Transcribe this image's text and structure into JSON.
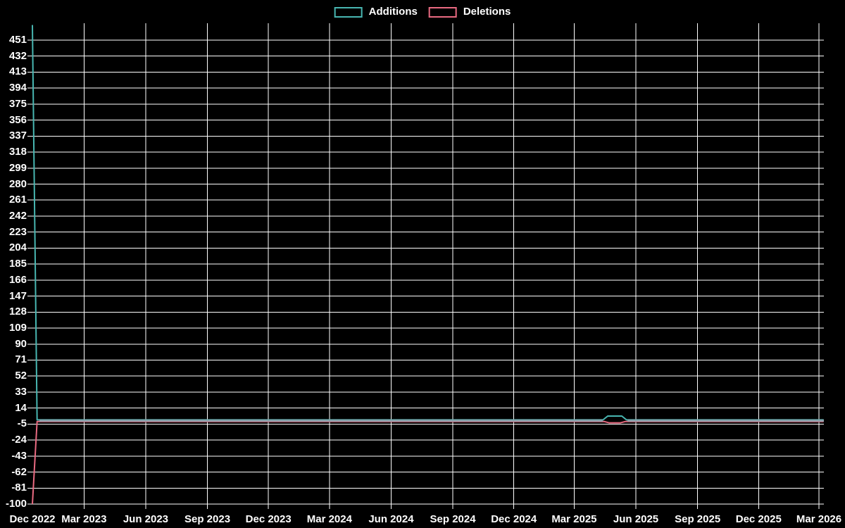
{
  "chart_data": {
    "type": "line",
    "title": "",
    "legend_position": "top-center",
    "background_color": "#000000",
    "grid": true,
    "grid_color": "#ffffff",
    "text_color": "#ffffff",
    "overlap_line_color": "#8ba4ae",
    "ylim": [
      -100,
      469
    ],
    "xlim": [
      "2022-12-14",
      "2026-03-08"
    ],
    "y_ticks": [
      451,
      432,
      413,
      394,
      375,
      356,
      337,
      318,
      299,
      280,
      261,
      242,
      223,
      204,
      185,
      166,
      147,
      128,
      109,
      90,
      71,
      52,
      33,
      14,
      -5,
      -24,
      -43,
      -62,
      -81,
      -100
    ],
    "x_ticks": [
      {
        "label": "Dec 2022",
        "date": "2022-12-14"
      },
      {
        "label": "Mar 2023",
        "date": "2023-03-01"
      },
      {
        "label": "Jun 2023",
        "date": "2023-06-01"
      },
      {
        "label": "Sep 2023",
        "date": "2023-09-01"
      },
      {
        "label": "Dec 2023",
        "date": "2023-12-01"
      },
      {
        "label": "Mar 2024",
        "date": "2024-03-01"
      },
      {
        "label": "Jun 2024",
        "date": "2024-06-01"
      },
      {
        "label": "Sep 2024",
        "date": "2024-09-01"
      },
      {
        "label": "Dec 2024",
        "date": "2024-12-01"
      },
      {
        "label": "Mar 2025",
        "date": "2025-03-01"
      },
      {
        "label": "Jun 2025",
        "date": "2025-06-01"
      },
      {
        "label": "Sep 2025",
        "date": "2025-09-01"
      },
      {
        "label": "Dec 2025",
        "date": "2025-12-01"
      },
      {
        "label": "Mar 2026",
        "date": "2026-03-01"
      }
    ],
    "series": [
      {
        "name": "Additions",
        "color": "#48b6b1",
        "points": [
          [
            "2022-12-14",
            469
          ],
          [
            "2022-12-21",
            0
          ],
          [
            "2025-04-13",
            0
          ],
          [
            "2025-04-20",
            4.5
          ],
          [
            "2025-05-11",
            4.5
          ],
          [
            "2025-05-18",
            0
          ],
          [
            "2026-03-08",
            0
          ]
        ]
      },
      {
        "name": "Deletions",
        "color": "#e96a81",
        "points": [
          [
            "2022-12-14",
            -100
          ],
          [
            "2022-12-21",
            -2
          ],
          [
            "2025-04-15",
            -2
          ],
          [
            "2025-04-22",
            -3.5
          ],
          [
            "2025-05-09",
            -3.5
          ],
          [
            "2025-05-16",
            -2
          ],
          [
            "2026-03-08",
            -2
          ]
        ]
      }
    ]
  }
}
